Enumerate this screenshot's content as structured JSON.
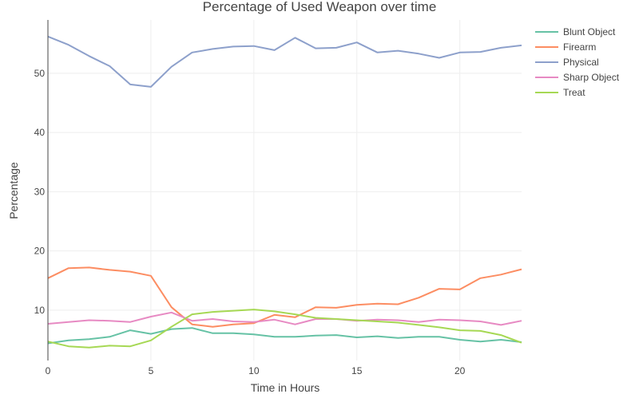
{
  "chart_data": {
    "type": "line",
    "title": "Percentage of Used Weapon over time",
    "xlabel": "Time in Hours",
    "ylabel": "Percentage",
    "xlim": [
      0,
      23
    ],
    "ylim": [
      1.5,
      59
    ],
    "xticks": [
      0,
      5,
      10,
      15,
      20
    ],
    "yticks": [
      10,
      20,
      30,
      40,
      50
    ],
    "grid": true,
    "legend_position": "top-right",
    "x": [
      0,
      1,
      2,
      3,
      4,
      5,
      6,
      7,
      8,
      9,
      10,
      11,
      12,
      13,
      14,
      15,
      16,
      17,
      18,
      19,
      20,
      21,
      22,
      23
    ],
    "series": [
      {
        "name": "Blunt Object",
        "color": "#66c2a5",
        "values": [
          4.4,
          4.9,
          5.1,
          5.5,
          6.6,
          6.0,
          6.8,
          7.0,
          6.1,
          6.1,
          5.9,
          5.5,
          5.5,
          5.7,
          5.8,
          5.4,
          5.6,
          5.3,
          5.5,
          5.5,
          5.0,
          4.7,
          5.0,
          4.6
        ]
      },
      {
        "name": "Firearm",
        "color": "#fc8d62",
        "values": [
          15.4,
          17.1,
          17.2,
          16.8,
          16.5,
          15.8,
          10.5,
          7.6,
          7.2,
          7.6,
          7.8,
          9.2,
          8.8,
          10.5,
          10.4,
          10.9,
          11.1,
          11.0,
          12.1,
          13.6,
          13.5,
          15.4,
          16.0,
          16.9
        ]
      },
      {
        "name": "Physical",
        "color": "#8da0cb",
        "values": [
          56.2,
          54.8,
          52.9,
          51.2,
          48.1,
          47.7,
          51.1,
          53.5,
          54.1,
          54.5,
          54.6,
          53.9,
          56.0,
          54.2,
          54.3,
          55.2,
          53.5,
          53.8,
          53.3,
          52.6,
          53.5,
          53.6,
          54.3,
          54.7
        ]
      },
      {
        "name": "Sharp Object",
        "color": "#e78ac3",
        "values": [
          7.7,
          8.0,
          8.3,
          8.2,
          8.0,
          8.9,
          9.6,
          8.2,
          8.5,
          8.1,
          8.0,
          8.4,
          7.6,
          8.5,
          8.5,
          8.2,
          8.4,
          8.3,
          8.0,
          8.4,
          8.3,
          8.1,
          7.5,
          8.2
        ]
      },
      {
        "name": "Treat",
        "color": "#a6d854",
        "values": [
          4.7,
          3.9,
          3.7,
          4.0,
          3.9,
          4.9,
          7.2,
          9.3,
          9.7,
          9.9,
          10.1,
          9.8,
          9.3,
          8.7,
          8.5,
          8.3,
          8.1,
          7.9,
          7.5,
          7.1,
          6.6,
          6.5,
          5.8,
          4.5
        ]
      }
    ]
  }
}
